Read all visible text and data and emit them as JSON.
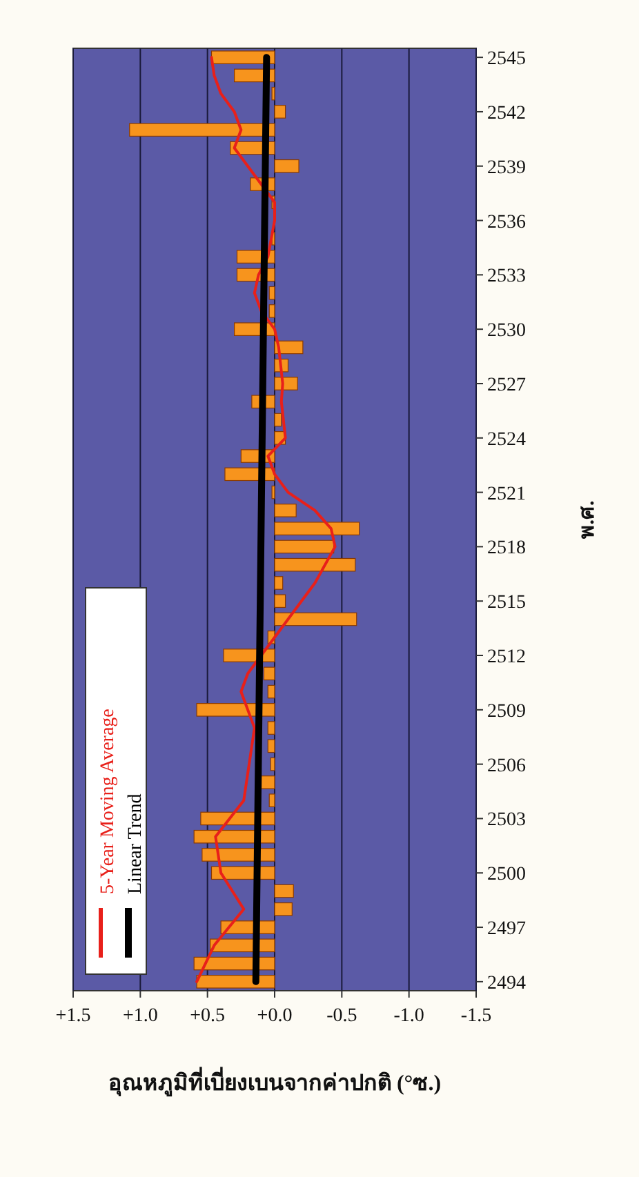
{
  "chart_data": {
    "type": "bar",
    "orientation": "horizontal",
    "ylabel": "พ.ศ.",
    "xlabel": "อุณหภูมิที่เบี่ยงเบนจากค่าปกติ (°ซ.)",
    "ylim": [
      2493.5,
      2545.5
    ],
    "yticks": [
      2494,
      2497,
      2500,
      2503,
      2506,
      2509,
      2512,
      2515,
      2518,
      2521,
      2524,
      2527,
      2530,
      2533,
      2536,
      2539,
      2542,
      2545
    ],
    "xlim": [
      1.5,
      -1.5
    ],
    "xticks": [
      {
        "value": 1.5,
        "label": "+1.5"
      },
      {
        "value": 1,
        "label": "+1.0"
      },
      {
        "value": 0.5,
        "label": "+0.5"
      },
      {
        "value": 0,
        "label": "+0.0"
      },
      -0.5,
      {
        "value": -1,
        "label": "-1.0"
      },
      -1.5
    ],
    "grid": "x",
    "legend": "bottom left",
    "series": [
      {
        "color": "#f7941d",
        "x": [
          2494,
          2495,
          2496,
          2497,
          2498,
          2499,
          2500,
          2501,
          2502,
          2503,
          2504,
          2505,
          2506,
          2507,
          2508,
          2509,
          2510,
          2511,
          2512,
          2513,
          2514,
          2515,
          2516,
          2517,
          2518,
          2519,
          2520,
          2521,
          2522,
          2523,
          2524,
          2525,
          2526,
          2527,
          2528,
          2529,
          2530,
          2531,
          2532,
          2533,
          2534,
          2535,
          2537,
          2538,
          2539,
          2540,
          2541,
          2542,
          2543,
          2544,
          2545
        ],
        "values": [
          0.58,
          0.6,
          0.48,
          0.4,
          -0.13,
          -0.14,
          0.47,
          0.54,
          0.6,
          0.55,
          0.04,
          0.1,
          0.03,
          0.05,
          0.05,
          0.58,
          0.05,
          0.08,
          0.38,
          0.05,
          -0.61,
          -0.08,
          -0.06,
          -0.6,
          -0.44,
          -0.63,
          -0.16,
          0.02,
          0.37,
          0.25,
          -0.08,
          -0.05,
          0.17,
          -0.17,
          -0.1,
          -0.21,
          0.3,
          0.04,
          0.04,
          0.28,
          0.28,
          0.02,
          0.02,
          0.18,
          -0.18,
          0.33,
          1.08,
          -0.08,
          0.02,
          0.3,
          0.47
        ]
      },
      {
        "type": "line",
        "name": "5-Year Moving Average",
        "color": "#e8201a",
        "x": [
          2494,
          2496,
          2498,
          2500,
          2502,
          2504,
          2508,
          2510,
          2511,
          2512,
          2513,
          2514,
          2516,
          2518,
          2519,
          2520,
          2521,
          2522,
          2523,
          2524,
          2526,
          2527,
          2529,
          2530,
          2531,
          2532,
          2533,
          2534,
          2536,
          2537,
          2538,
          2539,
          2540,
          2541,
          2542,
          2543,
          2544,
          2545
        ],
        "values": [
          0.58,
          0.45,
          0.23,
          0.4,
          0.44,
          0.23,
          0.15,
          0.25,
          0.2,
          0.1,
          0,
          -0.1,
          -0.3,
          -0.45,
          -0.42,
          -0.3,
          -0.1,
          0,
          0.05,
          -0.08,
          -0.05,
          -0.06,
          -0.03,
          0,
          0.1,
          0.15,
          0.12,
          0.05,
          0,
          0,
          0.1,
          0.2,
          0.3,
          0.25,
          0.3,
          0.4,
          0.45,
          0.47
        ]
      },
      {
        "type": "line",
        "name": "Linear Trend",
        "color": "#000000",
        "x": [
          2494,
          2545
        ],
        "values": [
          0.14,
          0.06
        ]
      }
    ]
  }
}
